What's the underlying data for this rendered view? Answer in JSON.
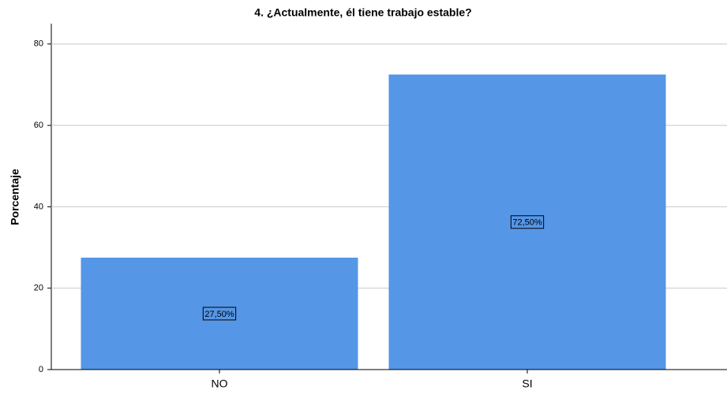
{
  "chart_data": {
    "type": "bar",
    "title": "4. ¿Actualmente, él tiene trabajo estable?",
    "y_label": "Porcentaje",
    "categories": [
      "NO",
      "SI"
    ],
    "values": [
      27.5,
      72.5
    ],
    "value_labels": [
      "27,50%",
      "72,50%"
    ],
    "color": "#5596e6",
    "ylim": [
      0,
      85
    ],
    "yticks": [
      0,
      20,
      40,
      60,
      80
    ],
    "grid": true
  }
}
